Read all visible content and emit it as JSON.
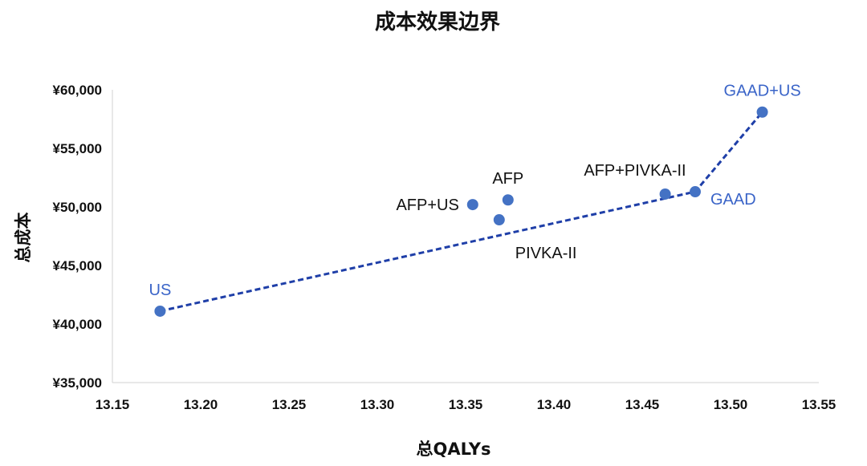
{
  "chart_data": {
    "type": "scatter",
    "title": "成本效果边界",
    "xlabel": "总QALYs",
    "ylabel": "总成本",
    "xlim": [
      13.15,
      13.55
    ],
    "ylim": [
      35000,
      60000
    ],
    "x_ticks": [
      "13.15",
      "13.20",
      "13.25",
      "13.30",
      "13.35",
      "13.40",
      "13.45",
      "13.50",
      "13.55"
    ],
    "y_ticks": [
      "¥35,000",
      "¥40,000",
      "¥45,000",
      "¥50,000",
      "¥55,000",
      "¥60,000"
    ],
    "grid": false,
    "legend": "none",
    "marker_color": "#4472C4",
    "frontier_color": "#1F3FA8",
    "frontier_label_color": "#3A64C8",
    "other_label_color": "#111111",
    "points": [
      {
        "label": "US",
        "x": 13.177,
        "y": 41100,
        "on_frontier": true,
        "label_anchor": "above"
      },
      {
        "label": "AFP+US",
        "x": 13.354,
        "y": 50200,
        "on_frontier": false,
        "label_anchor": "left"
      },
      {
        "label": "PIVKA-II",
        "x": 13.369,
        "y": 48900,
        "on_frontier": false,
        "label_anchor": "below-right"
      },
      {
        "label": "AFP",
        "x": 13.374,
        "y": 50600,
        "on_frontier": false,
        "label_anchor": "above"
      },
      {
        "label": "AFP+PIVKA-II",
        "x": 13.463,
        "y": 51100,
        "on_frontier": false,
        "label_anchor": "above-left"
      },
      {
        "label": "GAAD",
        "x": 13.48,
        "y": 51300,
        "on_frontier": true,
        "label_anchor": "right"
      },
      {
        "label": "GAAD+US",
        "x": 13.518,
        "y": 58100,
        "on_frontier": true,
        "label_anchor": "above"
      }
    ],
    "frontier": [
      "US",
      "GAAD",
      "GAAD+US"
    ]
  }
}
